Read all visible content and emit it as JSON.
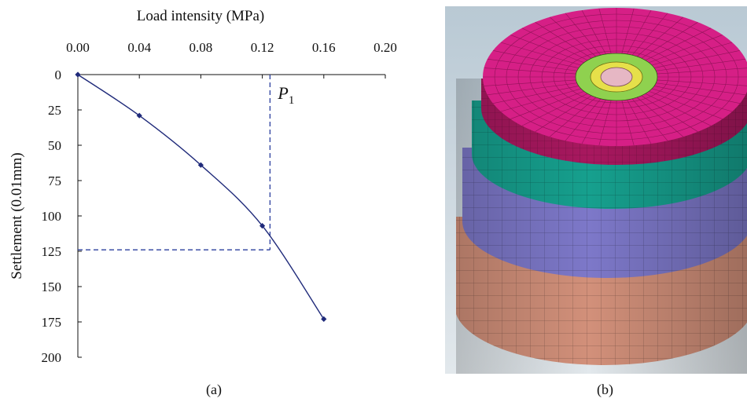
{
  "chart_data": {
    "type": "line",
    "xlabel": "Load intensity (MPa)",
    "ylabel": "Settlement (0.01mm)",
    "x_axis_position": "top",
    "y_axis_inverted": true,
    "xlim": [
      0,
      0.2
    ],
    "ylim": [
      0,
      200
    ],
    "xticks": [
      "0.00",
      "0.04",
      "0.08",
      "0.12",
      "0.16",
      "0.20"
    ],
    "yticks": [
      "0",
      "25",
      "50",
      "75",
      "100",
      "125",
      "150",
      "175",
      "200"
    ],
    "grid": false,
    "series": [
      {
        "x": [
          0.0,
          0.04,
          0.08,
          0.12,
          0.16
        ],
        "y": [
          0,
          29,
          64,
          107,
          173
        ],
        "color": "#1f2a7a",
        "marker": "diamond"
      }
    ],
    "annotation": {
      "label": "P",
      "subscript": "1",
      "x": 0.125,
      "y": 124,
      "style": "dashed",
      "color": "#2b3f9e"
    }
  },
  "captions": {
    "a": "(a)",
    "b": "(b)"
  },
  "model_image": {
    "description_colors": {
      "background_top": "#bcccd6",
      "background_bottom": "#dfe6ea",
      "top_layer": "#d61f86",
      "second_layer": "#16a08e",
      "third_layer": "#7d78c9",
      "bottom_layer": "#d2907a",
      "ring_green": "#8fd14f",
      "ring_yellow": "#e6e04a",
      "plate_pink": "#e6b7c4"
    }
  }
}
